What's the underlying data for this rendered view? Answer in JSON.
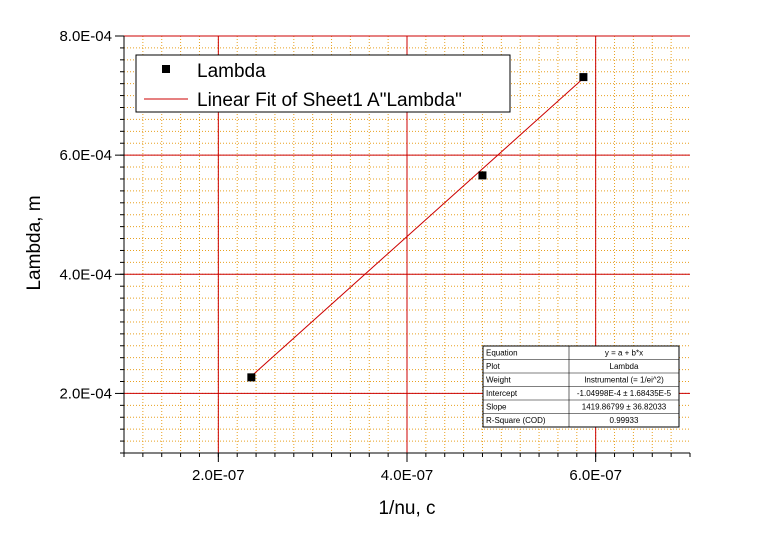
{
  "chart_data": {
    "type": "scatter",
    "title": "",
    "xlabel": "1/nu, c",
    "ylabel": "Lambda, m",
    "xlim": [
      1e-07,
      7e-07
    ],
    "ylim": [
      0.0001,
      0.0008
    ],
    "x_major_ticks": [
      2e-07,
      4e-07,
      6e-07
    ],
    "x_tick_labels": [
      "2.0E-07",
      "4.0E-07",
      "6.0E-07"
    ],
    "y_major_ticks": [
      0.0002,
      0.0004,
      0.0006,
      0.0008
    ],
    "y_tick_labels": [
      "2.0E-04",
      "4.0E-04",
      "6.0E-04",
      "8.0E-04"
    ],
    "grid": true,
    "legend_position": "top-left",
    "series": [
      {
        "name": "Lambda",
        "kind": "scatter",
        "color": "#000000",
        "x": [
          2.35e-07,
          4.8e-07,
          5.87e-07
        ],
        "y": [
          0.000227,
          0.000566,
          0.000731
        ]
      },
      {
        "name": "Linear Fit of Sheet1 A\"Lambda\"",
        "kind": "line",
        "color": "#cc0000",
        "x": [
          2.35e-07,
          5.87e-07
        ],
        "y": [
          0.000229,
          0.000729
        ]
      }
    ],
    "stats_table": [
      [
        "Equation",
        "y = a + b*x"
      ],
      [
        "Plot",
        "Lambda"
      ],
      [
        "Weight",
        "Instrumental (= 1/ei^2)"
      ],
      [
        "Intercept",
        "-1.04998E-4 ± 1.68435E-5"
      ],
      [
        "Slope",
        "1419.86799 ± 36.82033"
      ],
      [
        "R-Square (COD)",
        "0.99933"
      ]
    ],
    "colors": {
      "major_grid": "#cc0000",
      "minor_grid": "#e8a020",
      "axis": "#000000"
    }
  }
}
